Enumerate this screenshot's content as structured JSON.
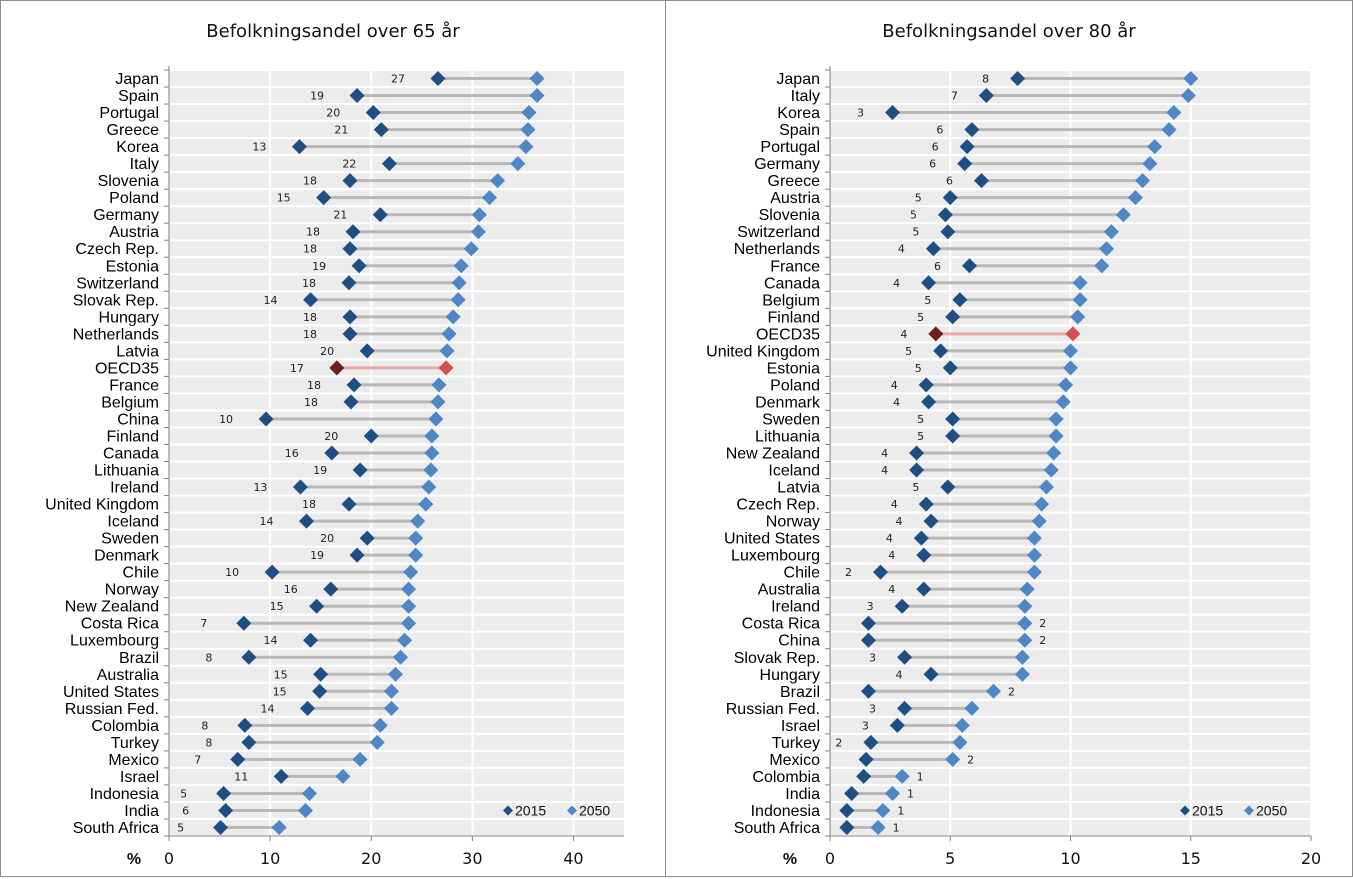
{
  "colors": {
    "marker_2015": "#1f4e85",
    "marker_2050": "#4f86c6",
    "connector": "#b8b8b8",
    "highlight_2015": "#6b1f1f",
    "highlight_2050": "#d05050",
    "highlight_connector": "#eaa8a8",
    "row_band": "#ececec"
  },
  "chart_data": [
    {
      "type": "dumbbell",
      "title": "Befolkningsandel over 65 år",
      "xlabel": "%",
      "xlim": [
        0,
        45
      ],
      "xticks": [
        0,
        10,
        20,
        30,
        40
      ],
      "grid": true,
      "legend": {
        "position": "bottom-right",
        "entries": [
          "2015",
          "2050"
        ]
      },
      "highlight": "OECD35",
      "categories": [
        "Japan",
        "Spain",
        "Portugal",
        "Greece",
        "Korea",
        "Italy",
        "Slovenia",
        "Poland",
        "Germany",
        "Austria",
        "Czech Rep.",
        "Estonia",
        "Switzerland",
        "Slovak Rep.",
        "Hungary",
        "Netherlands",
        "Latvia",
        "OECD35",
        "France",
        "Belgium",
        "China",
        "Finland",
        "Canada",
        "Lithuania",
        "Ireland",
        "United Kingdom",
        "Iceland",
        "Sweden",
        "Denmark",
        "Chile",
        "Norway",
        "New Zealand",
        "Costa Rica",
        "Luxembourg",
        "Brazil",
        "Australia",
        "United States",
        "Russian Fed.",
        "Colombia",
        "Turkey",
        "Mexico",
        "Israel",
        "Indonesia",
        "India",
        "South Africa"
      ],
      "labels": [
        "27",
        "19",
        "20",
        "21",
        "13",
        "22",
        "18",
        "15",
        "21",
        "18",
        "18",
        "19",
        "18",
        "14",
        "18",
        "18",
        "20",
        "17",
        "18",
        "18",
        "10",
        "20",
        "16",
        "19",
        "13",
        "18",
        "14",
        "20",
        "19",
        "10",
        "16",
        "15",
        "7",
        "14",
        "8",
        "15",
        "15",
        "14",
        "8",
        "8",
        "7",
        "11",
        "5",
        "6",
        "5"
      ],
      "series": [
        {
          "name": "2015",
          "values": [
            26.6,
            18.6,
            20.2,
            21.0,
            12.9,
            21.8,
            17.9,
            15.3,
            20.9,
            18.2,
            17.9,
            18.8,
            17.8,
            14.0,
            17.9,
            17.9,
            19.6,
            16.6,
            18.3,
            18.0,
            9.6,
            20.0,
            16.1,
            18.9,
            13.0,
            17.8,
            13.6,
            19.6,
            18.6,
            10.2,
            16.0,
            14.6,
            7.4,
            14.0,
            7.9,
            15.0,
            14.9,
            13.7,
            7.5,
            7.9,
            6.8,
            11.1,
            5.4,
            5.6,
            5.1
          ]
        },
        {
          "name": "2050",
          "values": [
            36.4,
            36.4,
            35.6,
            35.5,
            35.3,
            34.5,
            32.5,
            31.7,
            30.7,
            30.6,
            29.9,
            28.9,
            28.7,
            28.6,
            28.1,
            27.7,
            27.5,
            27.4,
            26.7,
            26.6,
            26.4,
            26.0,
            26.0,
            25.9,
            25.7,
            25.4,
            24.6,
            24.4,
            24.4,
            23.9,
            23.7,
            23.7,
            23.7,
            23.3,
            22.9,
            22.4,
            22.0,
            22.0,
            20.9,
            20.6,
            18.9,
            17.2,
            13.9,
            13.5,
            10.9
          ]
        }
      ]
    },
    {
      "type": "dumbbell",
      "title": "Befolkningsandel over 80 år",
      "xlabel": "%",
      "xlim": [
        0,
        20
      ],
      "xticks": [
        0,
        5,
        10,
        15,
        20
      ],
      "grid": true,
      "legend": {
        "position": "bottom-right",
        "entries": [
          "2015",
          "2050"
        ]
      },
      "highlight": "OECD35",
      "categories": [
        "Japan",
        "Italy",
        "Korea",
        "Spain",
        "Portugal",
        "Germany",
        "Greece",
        "Austria",
        "Slovenia",
        "Switzerland",
        "Netherlands",
        "France",
        "Canada",
        "Belgium",
        "Finland",
        "OECD35",
        "United Kingdom",
        "Estonia",
        "Poland",
        "Denmark",
        "Sweden",
        "Lithuania",
        "New Zealand",
        "Iceland",
        "Latvia",
        "Czech Rep.",
        "Norway",
        "United States",
        "Luxembourg",
        "Chile",
        "Australia",
        "Ireland",
        "Costa Rica",
        "China",
        "Slovak Rep.",
        "Hungary",
        "Brazil",
        "Russian Fed.",
        "Israel",
        "Turkey",
        "Mexico",
        "Colombia",
        "India",
        "Indonesia",
        "South Africa"
      ],
      "labels": [
        "8",
        "7",
        "3",
        "6",
        "6",
        "6",
        "6",
        "5",
        "5",
        "5",
        "4",
        "6",
        "4",
        "5",
        "5",
        "4",
        "5",
        "5",
        "4",
        "4",
        "5",
        "5",
        "4",
        "4",
        "5",
        "4",
        "4",
        "4",
        "4",
        "2",
        "4",
        "3",
        "2",
        "2",
        "3",
        "4",
        "2",
        "3",
        "3",
        "2",
        "2",
        "1",
        "1",
        "1",
        "1"
      ],
      "series": [
        {
          "name": "2015",
          "values": [
            7.8,
            6.5,
            2.6,
            5.9,
            5.7,
            5.6,
            6.3,
            5.0,
            4.8,
            4.9,
            4.3,
            5.8,
            4.1,
            5.4,
            5.1,
            4.4,
            4.6,
            5.0,
            4.0,
            4.1,
            5.1,
            5.1,
            3.6,
            3.6,
            4.9,
            4.0,
            4.2,
            3.8,
            3.9,
            2.1,
            3.9,
            3.0,
            1.6,
            1.6,
            3.1,
            4.2,
            1.6,
            3.1,
            2.8,
            1.7,
            1.5,
            1.4,
            0.9,
            0.7,
            0.7
          ]
        },
        {
          "name": "2050",
          "values": [
            15.0,
            14.9,
            14.3,
            14.1,
            13.5,
            13.3,
            13.0,
            12.7,
            12.2,
            11.7,
            11.5,
            11.3,
            10.4,
            10.4,
            10.3,
            10.1,
            10.0,
            10.0,
            9.8,
            9.7,
            9.4,
            9.4,
            9.3,
            9.2,
            9.0,
            8.8,
            8.7,
            8.5,
            8.5,
            8.5,
            8.2,
            8.1,
            8.1,
            8.1,
            8.0,
            8.0,
            6.8,
            5.9,
            5.5,
            5.4,
            5.1,
            3.0,
            2.6,
            2.2,
            2.0
          ]
        }
      ]
    }
  ]
}
